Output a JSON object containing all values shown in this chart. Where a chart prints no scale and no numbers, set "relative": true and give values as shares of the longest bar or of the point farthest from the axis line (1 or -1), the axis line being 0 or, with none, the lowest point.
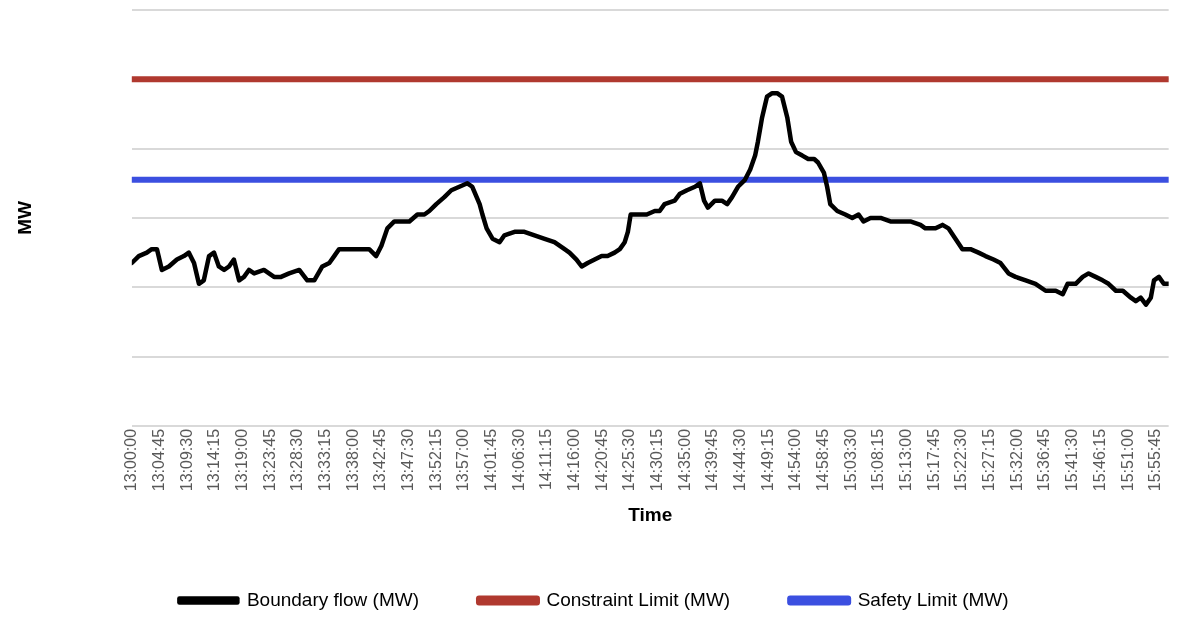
{
  "chart_data": {
    "type": "line",
    "xlabel": "Time",
    "ylabel": "MW",
    "relative": true,
    "grid": "y",
    "legend": "bottom",
    "marker": "none",
    "line_style": "solid",
    "xlim": [
      13,
      15.966
    ],
    "xticks": [
      {
        "value": 13,
        "label": "13:00:00"
      },
      {
        "value": 13.0792,
        "label": "13:04:45"
      },
      {
        "value": 13.1583,
        "label": "13:09:30"
      },
      {
        "value": 13.2375,
        "label": "13:14:15"
      },
      {
        "value": 13.3167,
        "label": "13:19:00"
      },
      {
        "value": 13.3958,
        "label": "13:23:45"
      },
      {
        "value": 13.475,
        "label": "13:28:30"
      },
      {
        "value": 13.5542,
        "label": "13:33:15"
      },
      {
        "value": 13.6333,
        "label": "13:38:00"
      },
      {
        "value": 13.7125,
        "label": "13:42:45"
      },
      {
        "value": 13.7917,
        "label": "13:47:30"
      },
      {
        "value": 13.8708,
        "label": "13:52:15"
      },
      {
        "value": 13.95,
        "label": "13:57:00"
      },
      {
        "value": 14.0292,
        "label": "14:01:45"
      },
      {
        "value": 14.1083,
        "label": "14:06:30"
      },
      {
        "value": 14.1875,
        "label": "14:11:15"
      },
      {
        "value": 14.2667,
        "label": "14:16:00"
      },
      {
        "value": 14.3458,
        "label": "14:20:45"
      },
      {
        "value": 14.425,
        "label": "14:25:30"
      },
      {
        "value": 14.5042,
        "label": "14:30:15"
      },
      {
        "value": 14.5833,
        "label": "14:35:00"
      },
      {
        "value": 14.6625,
        "label": "14:39:45"
      },
      {
        "value": 14.7417,
        "label": "14:44:30"
      },
      {
        "value": 14.8208,
        "label": "14:49:15"
      },
      {
        "value": 14.9,
        "label": "14:54:00"
      },
      {
        "value": 14.9792,
        "label": "14:58:45"
      },
      {
        "value": 15.0583,
        "label": "15:03:30"
      },
      {
        "value": 15.1375,
        "label": "15:08:15"
      },
      {
        "value": 15.2167,
        "label": "15:13:00"
      },
      {
        "value": 15.2958,
        "label": "15:17:45"
      },
      {
        "value": 15.375,
        "label": "15:22:30"
      },
      {
        "value": 15.4542,
        "label": "15:27:15"
      },
      {
        "value": 15.5333,
        "label": "15:32:00"
      },
      {
        "value": 15.6125,
        "label": "15:36:45"
      },
      {
        "value": 15.6917,
        "label": "15:41:30"
      },
      {
        "value": 15.7708,
        "label": "15:46:15"
      },
      {
        "value": 15.85,
        "label": "15:51:00"
      },
      {
        "value": 15.9292,
        "label": "15:55:45"
      }
    ],
    "series": [
      {
        "name": "Boundary flow (MW)",
        "color": "#000000",
        "x": [
          13.0,
          13.02,
          13.043,
          13.057,
          13.072,
          13.086,
          13.106,
          13.129,
          13.149,
          13.163,
          13.178,
          13.192,
          13.206,
          13.221,
          13.235,
          13.249,
          13.264,
          13.278,
          13.292,
          13.307,
          13.321,
          13.335,
          13.35,
          13.378,
          13.407,
          13.427,
          13.45,
          13.479,
          13.502,
          13.522,
          13.545,
          13.565,
          13.579,
          13.593,
          13.622,
          13.651,
          13.679,
          13.699,
          13.714,
          13.731,
          13.751,
          13.771,
          13.794,
          13.817,
          13.837,
          13.851,
          13.871,
          13.894,
          13.914,
          13.937,
          13.96,
          13.974,
          13.995,
          14.003,
          14.015,
          14.032,
          14.052,
          14.066,
          14.095,
          14.123,
          14.152,
          14.181,
          14.209,
          14.238,
          14.252,
          14.272,
          14.287,
          14.304,
          14.324,
          14.344,
          14.361,
          14.381,
          14.396,
          14.41,
          14.419,
          14.427,
          14.439,
          14.453,
          14.473,
          14.496,
          14.51,
          14.524,
          14.553,
          14.568,
          14.588,
          14.611,
          14.625,
          14.637,
          14.648,
          14.668,
          14.688,
          14.703,
          14.717,
          14.734,
          14.754,
          14.769,
          14.783,
          14.791,
          14.803,
          14.817,
          14.832,
          14.846,
          14.86,
          14.875,
          14.886,
          14.9,
          14.918,
          14.935,
          14.952,
          14.963,
          14.98,
          14.989,
          14.998,
          15.018,
          15.041,
          15.061,
          15.079,
          15.093,
          15.113,
          15.142,
          15.17,
          15.198,
          15.227,
          15.256,
          15.27,
          15.299,
          15.319,
          15.336,
          15.356,
          15.376,
          15.399,
          15.422,
          15.442,
          15.465,
          15.485,
          15.508,
          15.528,
          15.557,
          15.585,
          15.614,
          15.643,
          15.663,
          15.677,
          15.7,
          15.72,
          15.737,
          15.757,
          15.777,
          15.794,
          15.815,
          15.835,
          15.858,
          15.872,
          15.886,
          15.901,
          15.915,
          15.924,
          15.938,
          15.952,
          15.966
        ],
        "values": [
          0.47,
          0.49,
          0.5,
          0.51,
          0.51,
          0.45,
          0.46,
          0.48,
          0.49,
          0.5,
          0.47,
          0.41,
          0.42,
          0.49,
          0.5,
          0.46,
          0.45,
          0.46,
          0.48,
          0.42,
          0.43,
          0.45,
          0.44,
          0.45,
          0.43,
          0.43,
          0.44,
          0.45,
          0.42,
          0.42,
          0.46,
          0.47,
          0.49,
          0.51,
          0.51,
          0.51,
          0.51,
          0.49,
          0.52,
          0.57,
          0.59,
          0.59,
          0.59,
          0.61,
          0.61,
          0.62,
          0.64,
          0.66,
          0.68,
          0.69,
          0.7,
          0.69,
          0.64,
          0.61,
          0.57,
          0.54,
          0.53,
          0.55,
          0.56,
          0.56,
          0.55,
          0.54,
          0.53,
          0.51,
          0.5,
          0.48,
          0.46,
          0.47,
          0.48,
          0.49,
          0.49,
          0.5,
          0.51,
          0.53,
          0.56,
          0.61,
          0.61,
          0.61,
          0.61,
          0.62,
          0.62,
          0.64,
          0.65,
          0.67,
          0.68,
          0.69,
          0.7,
          0.65,
          0.63,
          0.65,
          0.65,
          0.64,
          0.66,
          0.69,
          0.71,
          0.74,
          0.78,
          0.82,
          0.89,
          0.95,
          0.96,
          0.96,
          0.95,
          0.89,
          0.82,
          0.79,
          0.78,
          0.77,
          0.77,
          0.76,
          0.73,
          0.69,
          0.64,
          0.62,
          0.61,
          0.6,
          0.61,
          0.59,
          0.6,
          0.6,
          0.59,
          0.59,
          0.59,
          0.58,
          0.57,
          0.57,
          0.58,
          0.57,
          0.54,
          0.51,
          0.51,
          0.5,
          0.49,
          0.48,
          0.47,
          0.44,
          0.43,
          0.42,
          0.41,
          0.39,
          0.39,
          0.38,
          0.41,
          0.41,
          0.43,
          0.44,
          0.43,
          0.42,
          0.41,
          0.39,
          0.39,
          0.37,
          0.36,
          0.37,
          0.35,
          0.37,
          0.42,
          0.43,
          0.41,
          0.41
        ]
      },
      {
        "name": "Constraint Limit (MW)",
        "color": "#b0392f",
        "x": [
          13,
          15.966
        ],
        "values": [
          1,
          1
        ]
      },
      {
        "name": "Safety Limit (MW)",
        "color": "#3b4fe0",
        "x": [
          13,
          15.966
        ],
        "values": [
          0.71,
          0.71
        ]
      }
    ]
  }
}
